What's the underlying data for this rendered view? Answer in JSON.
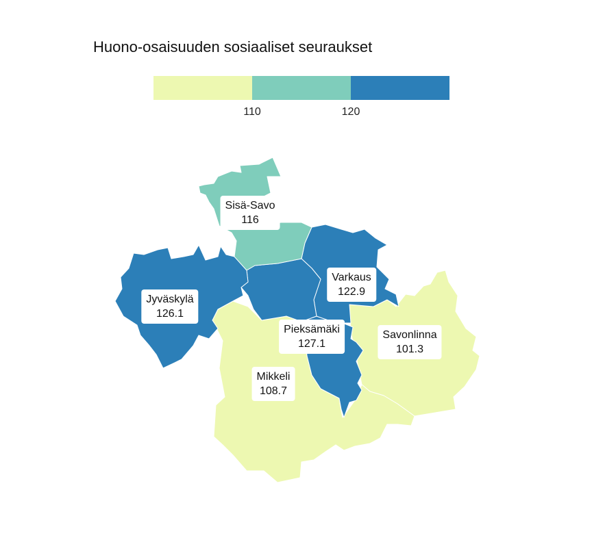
{
  "title": "Huono-osaisuuden sosiaaliset seuraukset",
  "legend": {
    "colors": [
      "#edf8b1",
      "#7fcdbb",
      "#2c7fb8"
    ],
    "breaks": [
      "110",
      "120"
    ]
  },
  "regions": [
    {
      "name": "Sisä-Savo",
      "value": "116",
      "color": "#7fcdbb"
    },
    {
      "name": "Varkaus",
      "value": "122.9",
      "color": "#2c7fb8"
    },
    {
      "name": "Jyväskylä",
      "value": "126.1",
      "color": "#2c7fb8"
    },
    {
      "name": "Pieksämäki",
      "value": "127.1",
      "color": "#2c7fb8"
    },
    {
      "name": "Savonlinna",
      "value": "101.3",
      "color": "#edf8b1"
    },
    {
      "name": "Mikkeli",
      "value": "108.7",
      "color": "#edf8b1"
    }
  ]
}
